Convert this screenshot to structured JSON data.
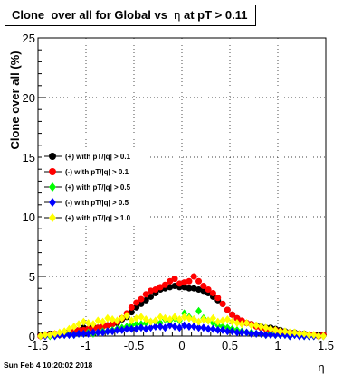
{
  "title": {
    "main": "Clone  over all for Global vs  ",
    "symbol": "η",
    "suffix": " at pT > 0.11"
  },
  "footer": "Sun Feb  4 10:20:02 2018",
  "colors": {
    "black": "#000000",
    "red": "#ff0000",
    "green": "#00ff00",
    "blue": "#0000ff",
    "yellow": "#ffff00"
  },
  "chart_data": {
    "type": "scatter",
    "title": "Clone  over all for Global vs  η at pT > 0.11",
    "xlabel": "η",
    "ylabel": "Clone  over all (%)",
    "xlim": [
      -1.5,
      1.5
    ],
    "ylim": [
      0,
      25
    ],
    "x_ticks": [
      "-1.5",
      "-1",
      "-0.5",
      "0",
      "0.5",
      "1",
      "1.5"
    ],
    "y_ticks": [
      "0",
      "5",
      "10",
      "15",
      "20",
      "25"
    ],
    "grid": true,
    "legend_placement": "left",
    "x": [
      -1.475,
      -1.425,
      -1.375,
      -1.325,
      -1.275,
      -1.225,
      -1.175,
      -1.125,
      -1.075,
      -1.025,
      -0.975,
      -0.925,
      -0.875,
      -0.825,
      -0.775,
      -0.725,
      -0.675,
      -0.625,
      -0.575,
      -0.525,
      -0.475,
      -0.425,
      -0.375,
      -0.325,
      -0.275,
      -0.225,
      -0.175,
      -0.125,
      -0.075,
      -0.025,
      0.025,
      0.075,
      0.125,
      0.175,
      0.225,
      0.275,
      0.325,
      0.375,
      0.425,
      0.475,
      0.525,
      0.575,
      0.625,
      0.675,
      0.725,
      0.775,
      0.825,
      0.875,
      0.925,
      0.975,
      1.025,
      1.075,
      1.125,
      1.175,
      1.225,
      1.275,
      1.325,
      1.375,
      1.425,
      1.475
    ],
    "series": [
      {
        "name": "(+) with pT/|q| > 0.1",
        "color": "#000000",
        "marker": "circle",
        "values": [
          0.1,
          0.1,
          0.2,
          0.1,
          0.2,
          0.3,
          0.4,
          0.4,
          0.5,
          0.7,
          0.6,
          0.8,
          0.7,
          0.8,
          0.9,
          1.0,
          1.1,
          1.4,
          1.6,
          2.0,
          2.4,
          2.7,
          3.0,
          3.3,
          3.6,
          3.9,
          4.0,
          4.1,
          4.2,
          4.1,
          4.1,
          4.0,
          4.0,
          3.9,
          3.8,
          3.6,
          3.3,
          3.0,
          2.7,
          2.2,
          1.8,
          1.5,
          1.2,
          1.1,
          1.0,
          0.9,
          0.8,
          0.7,
          0.7,
          0.6,
          0.5,
          0.4,
          0.3,
          0.3,
          0.2,
          0.2,
          0.1,
          0.1,
          0.1,
          0.1
        ]
      },
      {
        "name": "(-) with pT/|q| > 0.1",
        "color": "#ff0000",
        "marker": "circle",
        "values": [
          0.0,
          0.1,
          0.1,
          0.2,
          0.1,
          0.2,
          0.3,
          0.4,
          0.5,
          0.5,
          0.6,
          0.6,
          0.7,
          0.8,
          0.9,
          1.0,
          1.2,
          1.5,
          1.9,
          2.4,
          2.8,
          3.1,
          3.5,
          3.8,
          3.9,
          4.1,
          4.3,
          4.6,
          4.8,
          4.4,
          4.5,
          4.6,
          5.0,
          4.6,
          4.2,
          3.9,
          3.6,
          3.2,
          2.7,
          2.2,
          1.8,
          1.5,
          1.3,
          1.1,
          1.0,
          0.8,
          0.7,
          0.6,
          0.5,
          0.5,
          0.4,
          0.3,
          0.3,
          0.2,
          0.2,
          0.1,
          0.1,
          0.1,
          0.0,
          0.1
        ]
      },
      {
        "name": "(+) with pT/|q| > 0.5",
        "color": "#00ff00",
        "marker": "diamond",
        "values": [
          0.0,
          0.1,
          0.0,
          0.1,
          0.1,
          0.1,
          0.2,
          0.1,
          0.2,
          0.2,
          0.3,
          0.2,
          0.3,
          0.4,
          0.4,
          0.5,
          0.6,
          0.7,
          0.8,
          0.9,
          1.0,
          1.0,
          1.1,
          1.2,
          1.2,
          1.1,
          1.4,
          1.3,
          1.5,
          1.3,
          1.9,
          1.6,
          1.4,
          2.1,
          1.5,
          1.3,
          1.1,
          0.9,
          0.8,
          0.7,
          0.6,
          0.5,
          0.4,
          0.3,
          0.3,
          0.2,
          0.2,
          0.1,
          0.2,
          0.1,
          0.1,
          0.1,
          0.0,
          0.1,
          0.1,
          0.0,
          0.0,
          0.0,
          0.0,
          0.0
        ]
      },
      {
        "name": "(-) with pT/|q| > 0.5",
        "color": "#0000ff",
        "marker": "diamond",
        "values": [
          0.0,
          0.0,
          0.1,
          0.0,
          0.1,
          0.1,
          0.1,
          0.1,
          0.2,
          0.2,
          0.2,
          0.3,
          0.3,
          0.3,
          0.4,
          0.4,
          0.5,
          0.5,
          0.6,
          0.6,
          0.6,
          0.7,
          0.6,
          0.7,
          0.8,
          0.8,
          0.7,
          0.9,
          0.8,
          0.7,
          0.9,
          0.8,
          0.8,
          0.7,
          0.7,
          0.6,
          0.6,
          0.5,
          0.5,
          0.4,
          0.4,
          0.3,
          0.3,
          0.3,
          0.2,
          0.2,
          0.2,
          0.1,
          0.1,
          0.1,
          0.1,
          0.1,
          0.0,
          0.1,
          0.0,
          0.0,
          0.0,
          0.0,
          0.0,
          0.0
        ]
      },
      {
        "name": "(+) with pT/|q| > 1.0",
        "color": "#ffff00",
        "marker": "diamond",
        "values": [
          0.0,
          0.1,
          0.1,
          0.2,
          0.3,
          0.4,
          0.6,
          0.8,
          1.0,
          1.2,
          1.1,
          1.0,
          1.3,
          1.2,
          1.5,
          1.4,
          1.3,
          1.5,
          1.7,
          1.3,
          1.5,
          1.6,
          1.4,
          1.2,
          1.3,
          1.6,
          1.5,
          1.4,
          1.6,
          1.4,
          1.6,
          1.5,
          1.4,
          1.2,
          1.4,
          1.3,
          1.5,
          1.2,
          1.3,
          1.4,
          1.2,
          1.1,
          1.0,
          1.1,
          0.9,
          0.9,
          0.8,
          0.7,
          0.6,
          0.5,
          0.4,
          0.4,
          0.3,
          0.3,
          0.2,
          0.2,
          0.1,
          0.1,
          0.0,
          0.0
        ]
      }
    ]
  }
}
